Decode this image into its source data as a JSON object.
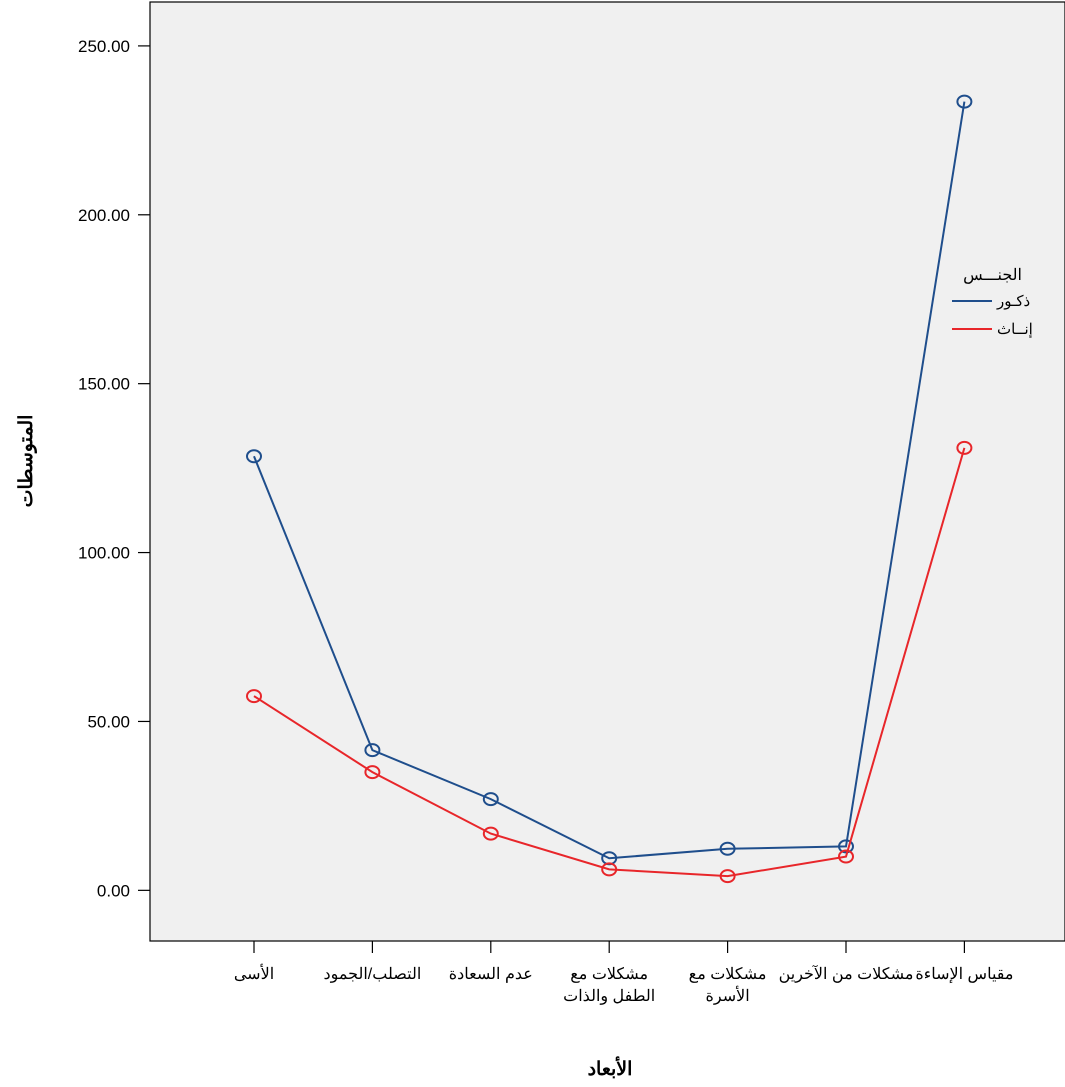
{
  "chart_data": {
    "type": "line",
    "title": "",
    "xlabel": "الأبعاد",
    "ylabel": "المتوسطات",
    "ylim": [
      -15,
      263
    ],
    "yticks": [
      0,
      50,
      100,
      150,
      200,
      250
    ],
    "ytick_labels": [
      "0.00",
      "50.00",
      "100.00",
      "150.00",
      "200.00",
      "250.00"
    ],
    "categories": [
      [
        "الأسى"
      ],
      [
        "التصلب/الجمود"
      ],
      [
        "عدم السعادة"
      ],
      [
        "مشكلات مع",
        "الطفل والذات"
      ],
      [
        "مشكلات مع",
        "الأسرة"
      ],
      [
        "مشكلات من الآخرين"
      ],
      [
        "مقياس الإساءة"
      ]
    ],
    "legend": {
      "title": "الجنـــس",
      "placement": "right"
    },
    "series": [
      {
        "name": "ذكـور",
        "color": "#1f4e8c",
        "values": [
          128.5,
          41.5,
          27.0,
          9.5,
          12.3,
          13.0,
          233.5
        ]
      },
      {
        "name": "إنــاث",
        "color": "#e8262a",
        "values": [
          57.5,
          35.0,
          16.8,
          6.2,
          4.2,
          10.0,
          131.0
        ]
      }
    ],
    "plot_background": "#f0f0f0",
    "grid": false,
    "marker": "open-circle"
  }
}
